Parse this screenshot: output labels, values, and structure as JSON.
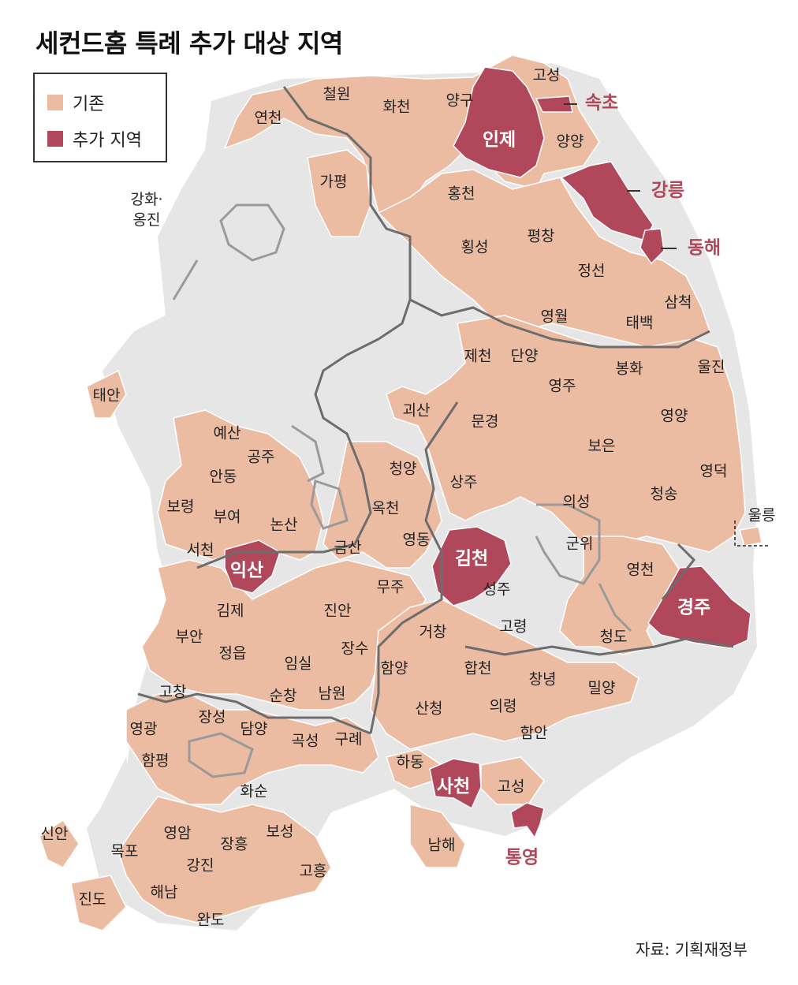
{
  "title": "세컨드홈 특례 추가 대상 지역",
  "legend": [
    {
      "label": "기존",
      "color": "#ebbca2"
    },
    {
      "label": "추가 지역",
      "color": "#b0475a"
    }
  ],
  "source": "자료: 기획재정부",
  "colors": {
    "existing": "#ebbca2",
    "added": "#b0475a",
    "other_land": "#e4e4e4",
    "boundary": "#6d6d6d",
    "sea": "#ffffff",
    "added_label_outside": "#b0475a"
  },
  "regions_existing": [
    "고성",
    "철원",
    "화천",
    "양구",
    "연천",
    "양양",
    "가평",
    "강화·옹진",
    "홍천",
    "횡성",
    "평창",
    "정선",
    "삼척",
    "영월",
    "태백",
    "제천",
    "단양",
    "봉화",
    "울진",
    "영주",
    "태안",
    "괴산",
    "문경",
    "예산",
    "공주",
    "영양",
    "안동",
    "청양",
    "보은",
    "영덕",
    "상주",
    "보령",
    "부여",
    "논산",
    "옥천",
    "청송",
    "의성",
    "울릉",
    "서천",
    "금산",
    "영동",
    "군위",
    "영천",
    "무주",
    "성주",
    "진안",
    "김제",
    "고령",
    "부안",
    "장수",
    "청도",
    "정읍",
    "거창",
    "임실",
    "합천",
    "창녕",
    "밀양",
    "함양",
    "고창",
    "남원",
    "순창",
    "산청",
    "장성",
    "의령",
    "영광",
    "담양",
    "곡성",
    "구례",
    "함안",
    "함평",
    "하동",
    "고성",
    "화순",
    "신안",
    "남해",
    "영암",
    "보성",
    "장흥",
    "목포",
    "강진",
    "고흥",
    "해남",
    "진도",
    "완도"
  ],
  "regions_added": [
    "인제",
    "속초",
    "강릉",
    "동해",
    "익산",
    "김천",
    "경주",
    "사천",
    "통영"
  ]
}
